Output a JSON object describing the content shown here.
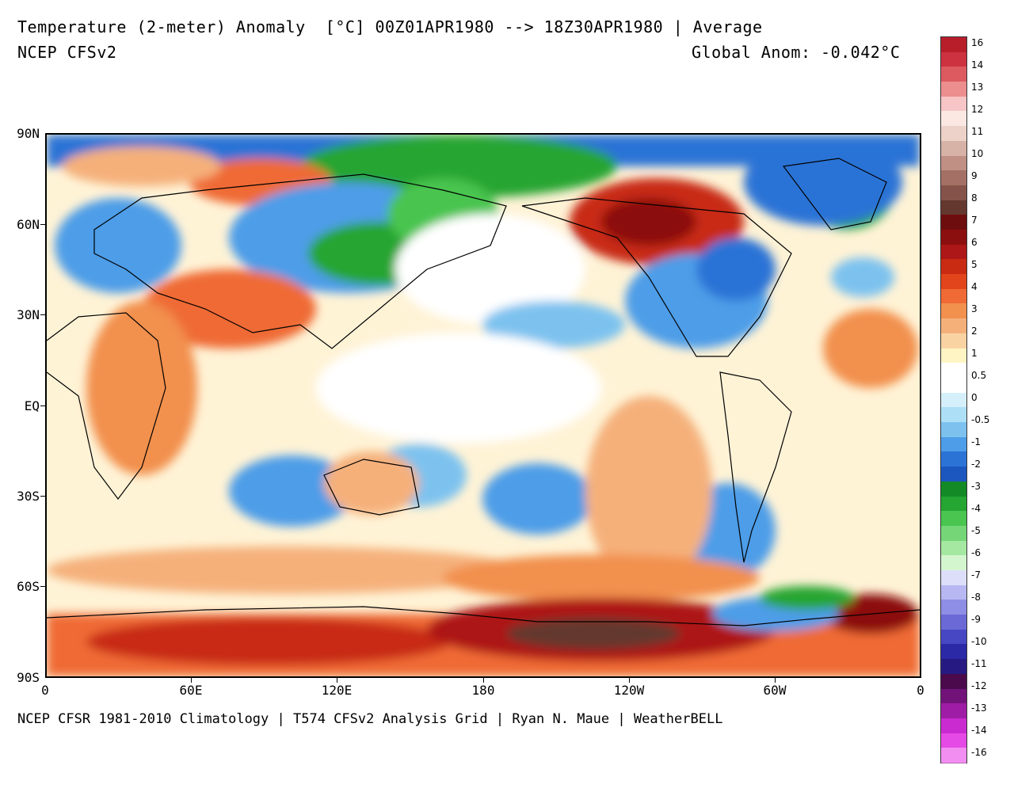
{
  "header": {
    "title": "Temperature (2-meter) Anomaly  [°C] 00Z01APR1980 --> 18Z30APR1980 | Average",
    "model": "NCEP CFSv2",
    "global_anomaly": "Global Anom: -0.042°C"
  },
  "footer": "NCEP CFSR 1981-2010 Climatology | T574 CFSv2 Analysis Grid | Ryan N. Maue | WeatherBELL",
  "map": {
    "lat_labels": [
      "90N",
      "60N",
      "30N",
      "EQ",
      "30S",
      "60S",
      "90S"
    ],
    "lon_labels": [
      "0",
      "60E",
      "120E",
      "180",
      "120W",
      "60W",
      "0"
    ],
    "colors": {
      "warm_strong": "#a01818",
      "warm": "#e8743a",
      "warm_light": "#f7c48e",
      "neutral": "#ffffff",
      "cool_light": "#bfe3f6",
      "cool": "#5b9de3",
      "cool_strong": "#2a5fc9",
      "green": "#26a631",
      "brown": "#5c3a33"
    }
  },
  "colorbar": {
    "labels": [
      "16",
      "14",
      "13",
      "12",
      "11",
      "10",
      "9",
      "8",
      "7",
      "6",
      "5",
      "4",
      "3",
      "2",
      "1",
      "0.5",
      "0",
      "-0.5",
      "-1",
      "-2",
      "-3",
      "-4",
      "-5",
      "-6",
      "-7",
      "-8",
      "-9",
      "-10",
      "-11",
      "-12",
      "-13",
      "-14",
      "-16"
    ],
    "colors": [
      "#b81e2a",
      "#cc3240",
      "#dd5a60",
      "#ec8e8e",
      "#f7c5c5",
      "#fbe8e2",
      "#ecd2c8",
      "#d7b2a6",
      "#c09085",
      "#a47065",
      "#86534a",
      "#64372f",
      "#6e0d0d",
      "#8c0f0f",
      "#ad1717",
      "#c82a12",
      "#e2441b",
      "#ef6a35",
      "#f2904e",
      "#f5b07a",
      "#fad3a3",
      "#fff5c4",
      "#ffffff",
      "#ffffff",
      "#d6f0fb",
      "#ade0f6",
      "#7dc2ef",
      "#4d9de8",
      "#2c73d6",
      "#1c57c0",
      "#138a26",
      "#25a532",
      "#49c550",
      "#75d677",
      "#a5e8a1",
      "#d4f6cf",
      "#dddffa",
      "#b7b8f2",
      "#8e8ee6",
      "#6a69d6",
      "#4747c4",
      "#2b29a6",
      "#261a82",
      "#4a0a4c",
      "#72137a",
      "#9f1da6",
      "#c92bd0",
      "#e64ae6",
      "#f28ef2"
    ]
  }
}
